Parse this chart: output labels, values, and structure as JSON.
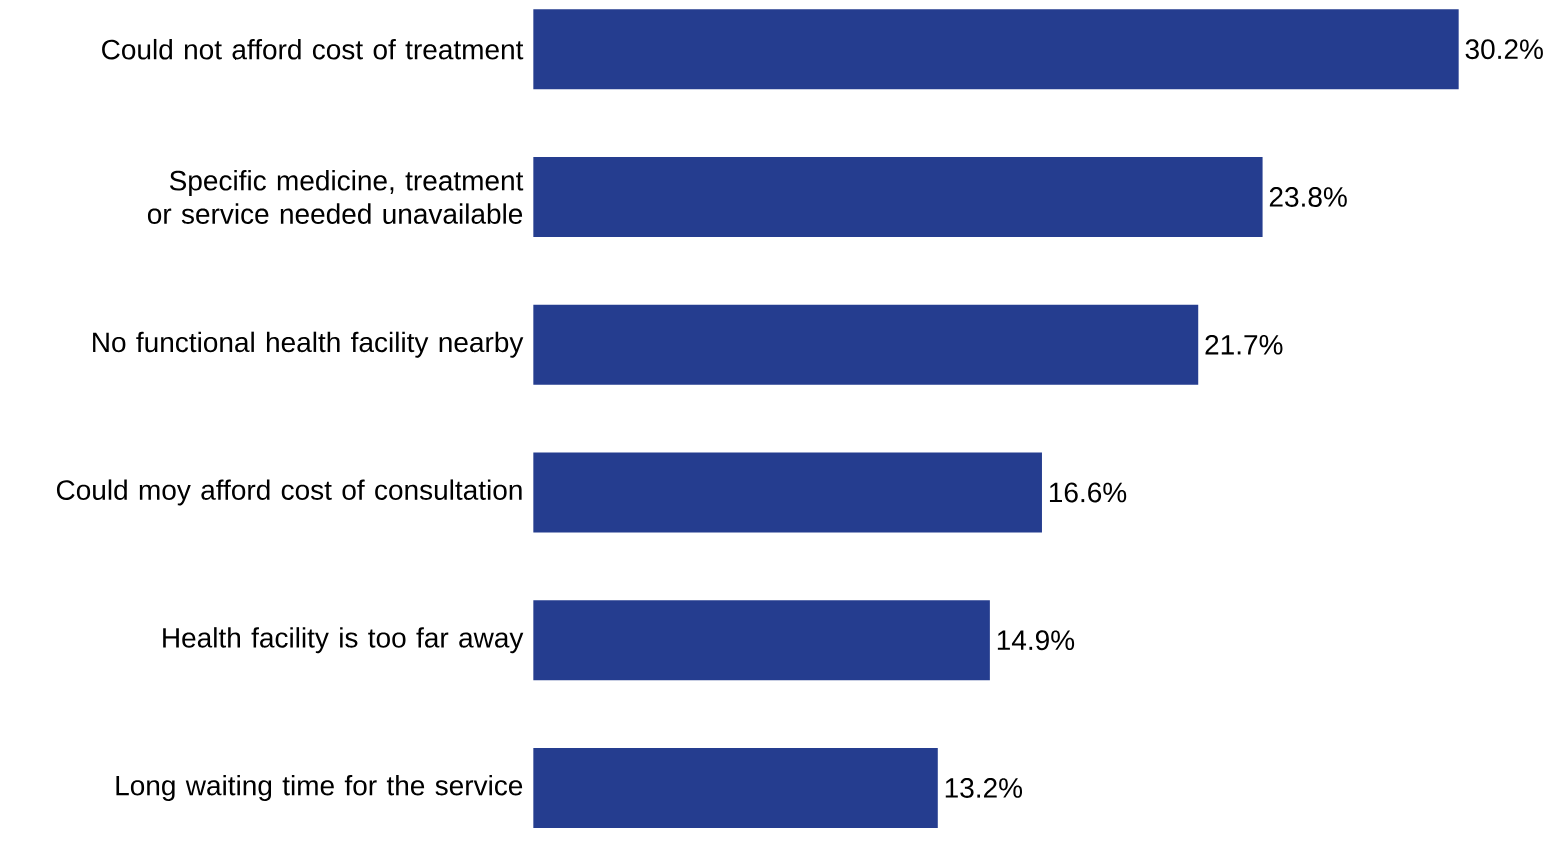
{
  "chart_data": {
    "type": "bar",
    "orientation": "horizontal",
    "categories": [
      "Could not afford cost of treatment",
      "Specific medicine, treatment or service needed unavailable",
      "No functional health facility nearby",
      "Could moy afford cost of consultation",
      "Health facility is too far away",
      "Long waiting time for the service"
    ],
    "values": [
      30.2,
      23.8,
      21.7,
      16.6,
      14.9,
      13.2
    ],
    "value_labels": [
      "30.2%",
      "23.8%",
      "21.7%",
      "16.6%",
      "14.9%",
      "13.2%"
    ],
    "color": "#253d8f"
  }
}
